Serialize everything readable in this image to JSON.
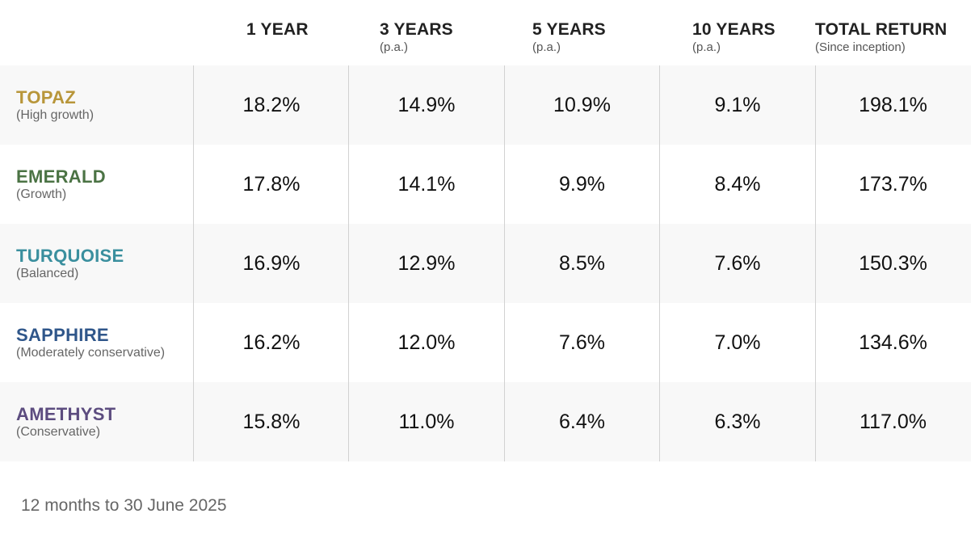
{
  "colors": {
    "topaz": "#b8963a",
    "emerald": "#4b7344",
    "turquoise": "#3a8f9e",
    "sapphire": "#2f568a",
    "amethyst": "#5c4c7f"
  },
  "chart_data": {
    "type": "table",
    "columns": [
      {
        "title": "1 YEAR",
        "sub": ""
      },
      {
        "title": "3 YEARS",
        "sub": "(p.a.)"
      },
      {
        "title": "5 YEARS",
        "sub": "(p.a.)"
      },
      {
        "title": "10 YEARS",
        "sub": "(p.a.)"
      },
      {
        "title": "TOTAL RETURN",
        "sub": "(Since inception)"
      }
    ],
    "rows": [
      {
        "name": "TOPAZ",
        "desc": "(High growth)",
        "color": "#b8963a",
        "values": [
          "18.2%",
          "14.9%",
          "10.9%",
          "9.1%",
          "198.1%"
        ]
      },
      {
        "name": "EMERALD",
        "desc": "(Growth)",
        "color": "#4b7344",
        "values": [
          "17.8%",
          "14.1%",
          "9.9%",
          "8.4%",
          "173.7%"
        ]
      },
      {
        "name": "TURQUOISE",
        "desc": "(Balanced)",
        "color": "#3a8f9e",
        "values": [
          "16.9%",
          "12.9%",
          "8.5%",
          "7.6%",
          "150.3%"
        ]
      },
      {
        "name": "SAPPHIRE",
        "desc": "(Moderately conservative)",
        "color": "#2f568a",
        "values": [
          "16.2%",
          "12.0%",
          "7.6%",
          "7.0%",
          "134.6%"
        ]
      },
      {
        "name": "AMETHYST",
        "desc": "(Conservative)",
        "color": "#5c4c7f",
        "values": [
          "15.8%",
          "11.0%",
          "6.4%",
          "6.3%",
          "117.0%"
        ]
      }
    ]
  },
  "footnote": "12 months to 30 June 2025"
}
